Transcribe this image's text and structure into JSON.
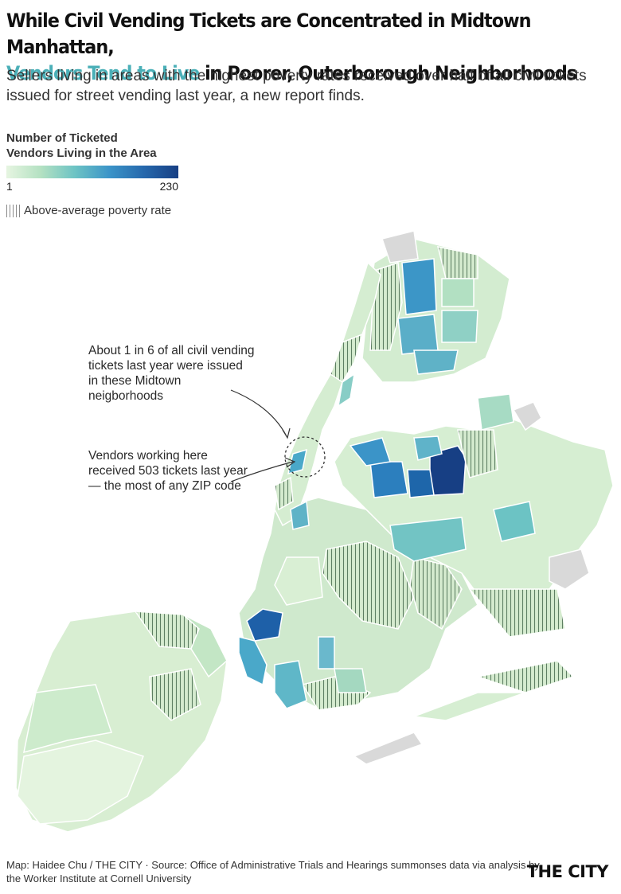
{
  "title": {
    "line1": "While Civil Vending Tickets are Concentrated in Midtown Manhattan,",
    "line2_highlight": "Vendors Tend to Live",
    "line2_rest": " in Poorer, Outerborough Neighborhoods"
  },
  "subtitle": "Sellers living in areas with the highest poverty rates received over half of all civil tickets issued for street vending last year, a new report finds.",
  "legend": {
    "title_line1": "Number of Ticketed",
    "title_line2": "Vendors Living in the Area",
    "min": "1",
    "max": "230",
    "hatch_label": "Above-average poverty rate",
    "ramp_colors": [
      "#e6f5e1",
      "#b4e1c2",
      "#6cc3c4",
      "#3b94c8",
      "#2668ac",
      "#173f84"
    ],
    "nodata_color": "#d9d9d9"
  },
  "annotations": {
    "midtown": "About 1 in 6 of all civil vending tickets last year were issued in these Midtown neigborhoods",
    "top_zip": "Vendors working here received 503 tickets last year — the most of any ZIP code"
  },
  "footer": {
    "credit": "Map: Haidee Chu / THE CITY · Source: Office of Administrative Trials and Hearings summonses data via analysis by the Worker Institute at Cornell University",
    "brand": "THE CITY"
  }
}
